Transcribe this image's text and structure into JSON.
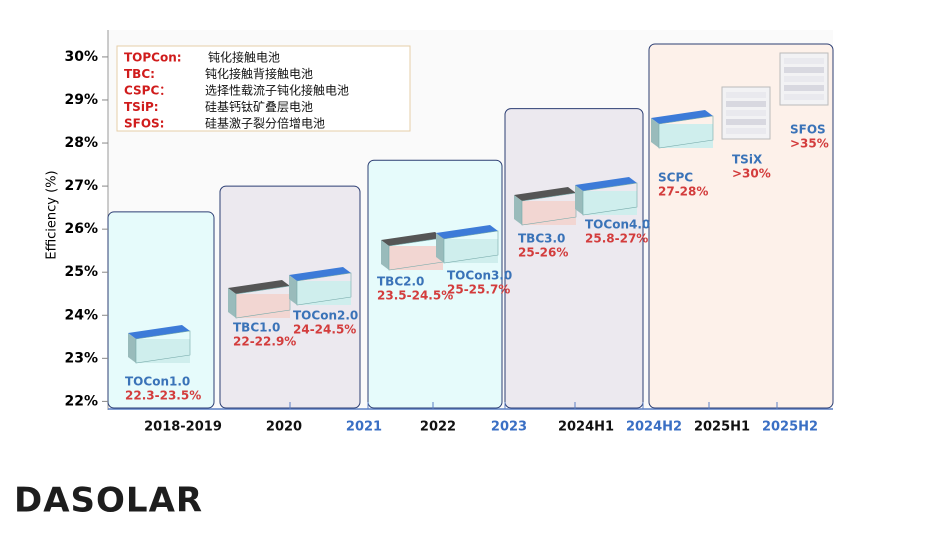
{
  "chart_data": {
    "type": "roadmap",
    "y_label": "Efficiency (%)",
    "ylim": [
      21.8,
      30.3
    ],
    "yticks": [
      {
        "value": 22,
        "label": "22%"
      },
      {
        "value": 23,
        "label": "23%"
      },
      {
        "value": 24,
        "label": "24%"
      },
      {
        "value": 25,
        "label": "25%"
      },
      {
        "value": 26,
        "label": "26%"
      },
      {
        "value": 27,
        "label": "27%"
      },
      {
        "value": 28,
        "label": "28%"
      },
      {
        "value": 29,
        "label": "29%"
      },
      {
        "value": 30,
        "label": "30%"
      }
    ],
    "categories": [
      "2018-2019",
      "2020",
      "2021",
      "2022",
      "2023",
      "2024H1",
      "2024H2",
      "2025H1",
      "2025H2"
    ],
    "category_colors": [
      "#111111",
      "#111111",
      "#3a6fc4",
      "#111111",
      "#3a6fc4",
      "#111111",
      "#3a6fc4",
      "#111111",
      "#3a6fc4"
    ],
    "stages": [
      {
        "ceiling": 26.4,
        "fill": "#e6fbfb"
      },
      {
        "ceiling": 27.0,
        "fill": "#ece9ef"
      },
      {
        "ceiling": 27.6,
        "fill": "#e6fbfb"
      },
      {
        "ceiling": 28.8,
        "fill": "#ece9ef"
      },
      {
        "ceiling": 30.3,
        "fill": "#fdf1ea"
      }
    ],
    "products": [
      {
        "name": "TOCon1.0",
        "values": [
          22.3,
          23.5
        ],
        "value_label": "22.3-23.5%"
      },
      {
        "name": "TBC1.0",
        "values": [
          22,
          22.9
        ],
        "value_label": "22-22.9%"
      },
      {
        "name": "TOCon2.0",
        "values": [
          24,
          24.5
        ],
        "value_label": "24-24.5%"
      },
      {
        "name": "TBC2.0",
        "values": [
          23.5,
          24.5
        ],
        "value_label": "23.5-24.5%"
      },
      {
        "name": "TOCon3.0",
        "values": [
          25,
          25.7
        ],
        "value_label": "25-25.7%"
      },
      {
        "name": "TBC3.0",
        "values": [
          25,
          26
        ],
        "value_label": "25-26%"
      },
      {
        "name": "TOCon4.0",
        "values": [
          25.8,
          27
        ],
        "value_label": "25.8-27%"
      },
      {
        "name": "SCPC",
        "values": [
          27,
          28
        ],
        "value_label": "27-28%"
      },
      {
        "name": "TSiX",
        "values": [
          30
        ],
        "value_label": ">30%"
      },
      {
        "name": "SFOS",
        "values": [
          35
        ],
        "value_label": ">35%"
      }
    ],
    "legend": [
      {
        "abbr": "TOPCon:",
        "text": "钝化接触电池"
      },
      {
        "abbr": "TBC:",
        "text": "钝化接触背接触电池"
      },
      {
        "abbr": "CSPC：",
        "text": "选择性载流子钝化接触电池"
      },
      {
        "abbr": "TSiP:",
        "text": "硅基钙钛矿叠层电池"
      },
      {
        "abbr": "SFOS:",
        "text": "硅基激子裂分倍增电池"
      }
    ],
    "logo": "DASOLAR"
  }
}
